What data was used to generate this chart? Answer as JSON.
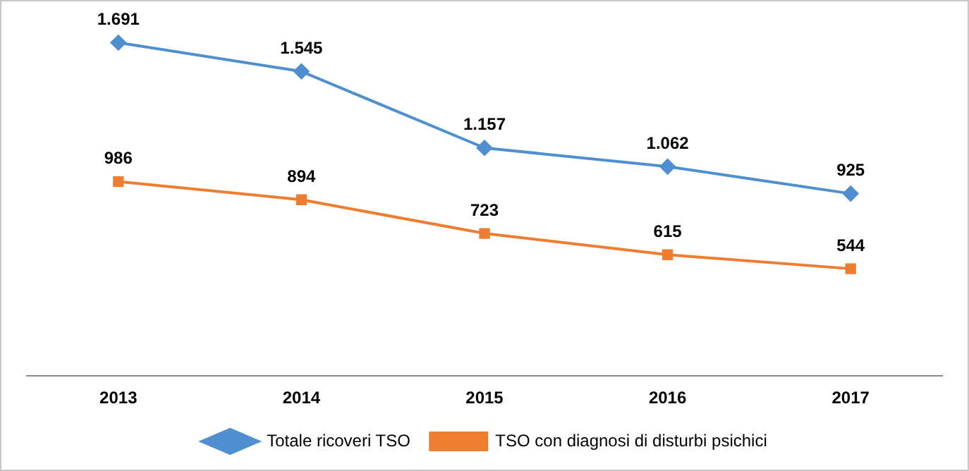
{
  "chart_data": {
    "type": "line",
    "categories": [
      "2013",
      "2014",
      "2015",
      "2016",
      "2017"
    ],
    "series": [
      {
        "name": "Totale ricoveri TSO",
        "color": "#4f8fd0",
        "marker": "diamond",
        "values": [
          1691,
          1545,
          1157,
          1062,
          925
        ],
        "value_labels": [
          "1.691",
          "1.545",
          "1.157",
          "1.062",
          "925"
        ]
      },
      {
        "name": "TSO con diagnosi di disturbi psichici",
        "color": "#ee7d31",
        "marker": "square",
        "values": [
          986,
          894,
          723,
          615,
          544
        ],
        "value_labels": [
          "986",
          "894",
          "723",
          "615",
          "544"
        ]
      }
    ],
    "legend": "bottom",
    "grid": false,
    "tick_labels": "x",
    "line_style": "solid"
  }
}
